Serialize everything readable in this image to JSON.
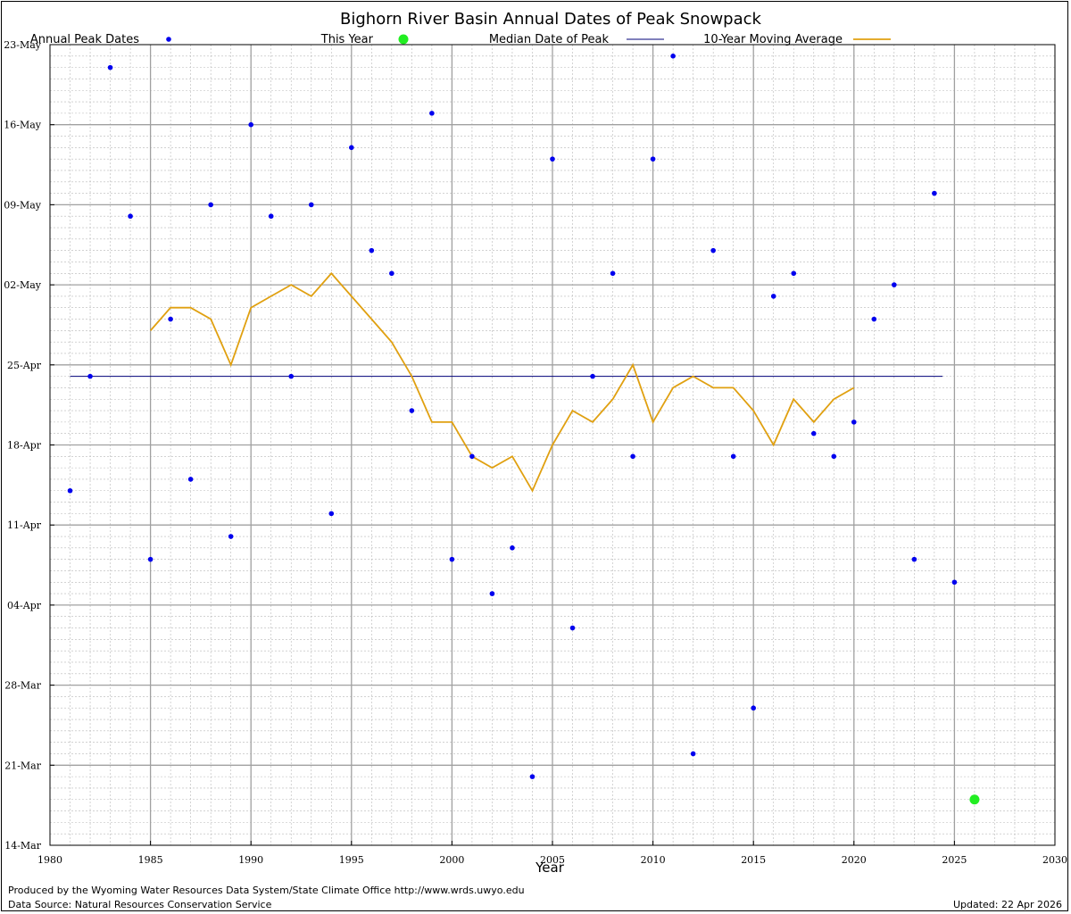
{
  "chart_data": {
    "type": "scatter",
    "title": "Bighorn River Basin Annual Dates of Peak Snowpack",
    "xlabel": "Year",
    "ylabel": "",
    "xlim": [
      1980,
      2030
    ],
    "ylim": [
      "14-Mar",
      "23-May"
    ],
    "x_ticks": [
      "1980",
      "1985",
      "1990",
      "1995",
      "2000",
      "2005",
      "2010",
      "2015",
      "2020",
      "2025",
      "2030"
    ],
    "y_ticks": [
      "14-Mar",
      "21-Mar",
      "28-Mar",
      "04-Apr",
      "11-Apr",
      "18-Apr",
      "25-Apr",
      "02-May",
      "09-May",
      "16-May",
      "23-May"
    ],
    "grid": true,
    "legend_placement": "top",
    "legend": [
      {
        "label": "Annual Peak Dates",
        "marker": "dot"
      },
      {
        "label": "This Year",
        "marker": "big-dot"
      },
      {
        "label": "Median Date of Peak",
        "marker": "line"
      },
      {
        "label": "10-Year Moving Average",
        "marker": "line"
      }
    ],
    "colors": {
      "annual": "#0000ee",
      "this_year": "#22ee22",
      "median": "#00007a",
      "moving_average": "#e0a010"
    },
    "series": [
      {
        "name": "Annual Peak Dates",
        "points": [
          {
            "x": 1981,
            "y": "2026-04-14"
          },
          {
            "x": 1982,
            "y": "2026-04-24"
          },
          {
            "x": 1983,
            "y": "2026-05-21"
          },
          {
            "x": 1984,
            "y": "2026-05-08"
          },
          {
            "x": 1985,
            "y": "2026-04-08"
          },
          {
            "x": 1986,
            "y": "2026-04-29"
          },
          {
            "x": 1987,
            "y": "2026-04-15"
          },
          {
            "x": 1988,
            "y": "2026-05-09"
          },
          {
            "x": 1989,
            "y": "2026-04-10"
          },
          {
            "x": 1990,
            "y": "2026-05-16"
          },
          {
            "x": 1991,
            "y": "2026-05-08"
          },
          {
            "x": 1992,
            "y": "2026-04-24"
          },
          {
            "x": 1993,
            "y": "2026-05-09"
          },
          {
            "x": 1994,
            "y": "2026-04-12"
          },
          {
            "x": 1995,
            "y": "2026-05-14"
          },
          {
            "x": 1996,
            "y": "2026-05-05"
          },
          {
            "x": 1997,
            "y": "2026-05-03"
          },
          {
            "x": 1998,
            "y": "2026-04-21"
          },
          {
            "x": 1999,
            "y": "2026-05-17"
          },
          {
            "x": 2000,
            "y": "2026-04-08"
          },
          {
            "x": 2001,
            "y": "2026-04-17"
          },
          {
            "x": 2002,
            "y": "2026-04-05"
          },
          {
            "x": 2003,
            "y": "2026-04-09"
          },
          {
            "x": 2004,
            "y": "2026-03-20"
          },
          {
            "x": 2005,
            "y": "2026-05-13"
          },
          {
            "x": 2006,
            "y": "2026-04-02"
          },
          {
            "x": 2007,
            "y": "2026-04-24"
          },
          {
            "x": 2008,
            "y": "2026-05-03"
          },
          {
            "x": 2009,
            "y": "2026-04-17"
          },
          {
            "x": 2010,
            "y": "2026-05-13"
          },
          {
            "x": 2011,
            "y": "2026-05-22"
          },
          {
            "x": 2012,
            "y": "2026-03-22"
          },
          {
            "x": 2013,
            "y": "2026-05-05"
          },
          {
            "x": 2014,
            "y": "2026-04-17"
          },
          {
            "x": 2015,
            "y": "2026-03-26"
          },
          {
            "x": 2016,
            "y": "2026-05-01"
          },
          {
            "x": 2017,
            "y": "2026-05-03"
          },
          {
            "x": 2018,
            "y": "2026-04-19"
          },
          {
            "x": 2019,
            "y": "2026-04-17"
          },
          {
            "x": 2020,
            "y": "2026-04-20"
          },
          {
            "x": 2021,
            "y": "2026-04-29"
          },
          {
            "x": 2022,
            "y": "2026-05-02"
          },
          {
            "x": 2023,
            "y": "2026-04-08"
          },
          {
            "x": 2024,
            "y": "2026-05-10"
          },
          {
            "x": 2025,
            "y": "2026-04-06"
          }
        ]
      },
      {
        "name": "This Year",
        "points": [
          {
            "x": 2026,
            "y": "2026-03-18"
          }
        ]
      },
      {
        "name": "Median Date of Peak",
        "points": [
          {
            "x": 1981,
            "y": "2026-04-24"
          },
          {
            "x": 2026,
            "y": "2026-04-24"
          }
        ]
      },
      {
        "name": "10-Year Moving Average",
        "points": [
          {
            "x": 1985,
            "y": "2026-04-28"
          },
          {
            "x": 1986,
            "y": "2026-04-30"
          },
          {
            "x": 1987,
            "y": "2026-04-30"
          },
          {
            "x": 1988,
            "y": "2026-04-29"
          },
          {
            "x": 1989,
            "y": "2026-04-25"
          },
          {
            "x": 1990,
            "y": "2026-04-30"
          },
          {
            "x": 1991,
            "y": "2026-05-01"
          },
          {
            "x": 1992,
            "y": "2026-05-02"
          },
          {
            "x": 1993,
            "y": "2026-05-01"
          },
          {
            "x": 1994,
            "y": "2026-05-03"
          },
          {
            "x": 1995,
            "y": "2026-05-01"
          },
          {
            "x": 1996,
            "y": "2026-04-29"
          },
          {
            "x": 1997,
            "y": "2026-04-27"
          },
          {
            "x": 1998,
            "y": "2026-04-24"
          },
          {
            "x": 1999,
            "y": "2026-04-20"
          },
          {
            "x": 2000,
            "y": "2026-04-20"
          },
          {
            "x": 2001,
            "y": "2026-04-17"
          },
          {
            "x": 2002,
            "y": "2026-04-16"
          },
          {
            "x": 2003,
            "y": "2026-04-17"
          },
          {
            "x": 2004,
            "y": "2026-04-14"
          },
          {
            "x": 2005,
            "y": "2026-04-18"
          },
          {
            "x": 2006,
            "y": "2026-04-21"
          },
          {
            "x": 2007,
            "y": "2026-04-20"
          },
          {
            "x": 2008,
            "y": "2026-04-22"
          },
          {
            "x": 2009,
            "y": "2026-04-25"
          },
          {
            "x": 2010,
            "y": "2026-04-20"
          },
          {
            "x": 2011,
            "y": "2026-04-23"
          },
          {
            "x": 2012,
            "y": "2026-04-24"
          },
          {
            "x": 2013,
            "y": "2026-04-23"
          },
          {
            "x": 2014,
            "y": "2026-04-23"
          },
          {
            "x": 2015,
            "y": "2026-04-21"
          },
          {
            "x": 2016,
            "y": "2026-04-18"
          },
          {
            "x": 2017,
            "y": "2026-04-22"
          },
          {
            "x": 2018,
            "y": "2026-04-20"
          },
          {
            "x": 2019,
            "y": "2026-04-22"
          },
          {
            "x": 2020,
            "y": "2026-04-23"
          }
        ]
      }
    ]
  },
  "footer": {
    "produced_by": "Produced by the Wyoming Water Resources Data System/State Climate Office http://www.wrds.uwyo.edu",
    "data_source": "Data Source: Natural Resources Conservation Service",
    "updated": "Updated: 22 Apr 2026"
  }
}
